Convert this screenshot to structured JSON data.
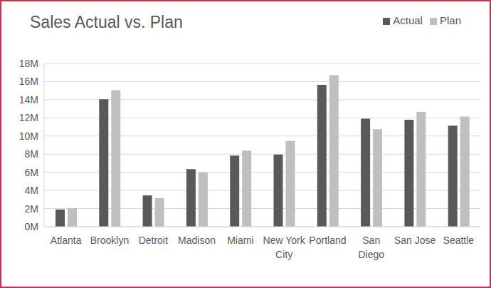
{
  "chart_data": {
    "type": "bar",
    "title": "Sales Actual vs. Plan",
    "categories": [
      "Atlanta",
      "Brooklyn",
      "Detroit",
      "Madison",
      "Miami",
      "New York City",
      "Portland",
      "San Diego",
      "San Jose",
      "Seattle"
    ],
    "series": [
      {
        "name": "Actual",
        "color": "#595959",
        "values": [
          1.9,
          14.05,
          3.45,
          6.35,
          7.85,
          7.95,
          15.65,
          11.9,
          11.8,
          11.15
        ]
      },
      {
        "name": "Plan",
        "color": "#bfbfbf",
        "values": [
          2.05,
          15.05,
          3.15,
          6.0,
          8.4,
          9.45,
          16.7,
          10.75,
          12.65,
          12.15
        ]
      }
    ],
    "ylim": [
      0,
      18
    ],
    "yticks": [
      {
        "value": 0,
        "label": "0M"
      },
      {
        "value": 2,
        "label": "2M"
      },
      {
        "value": 4,
        "label": "4M"
      },
      {
        "value": 6,
        "label": "6M"
      },
      {
        "value": 8,
        "label": "8M"
      },
      {
        "value": 10,
        "label": "10M"
      },
      {
        "value": 12,
        "label": "12M"
      },
      {
        "value": 14,
        "label": "14M"
      },
      {
        "value": 16,
        "label": "16M"
      },
      {
        "value": 18,
        "label": "18M"
      }
    ],
    "grid": true,
    "legend": "top-right"
  }
}
